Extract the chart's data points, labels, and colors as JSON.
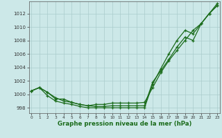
{
  "x": [
    0,
    1,
    2,
    3,
    4,
    5,
    6,
    7,
    8,
    9,
    10,
    11,
    12,
    13,
    14,
    15,
    16,
    17,
    18,
    19,
    20,
    21,
    22,
    23
  ],
  "curve1": [
    1000.5,
    1001.0,
    1000.3,
    999.5,
    999.0,
    998.8,
    998.5,
    998.3,
    998.5,
    998.5,
    998.7,
    998.7,
    998.7,
    998.7,
    998.8,
    1001.0,
    1003.2,
    1005.0,
    1006.5,
    1008.0,
    1009.5,
    1010.5,
    1012.0,
    1013.2
  ],
  "curve2": [
    1000.5,
    1001.0,
    1000.3,
    999.3,
    999.3,
    998.8,
    998.5,
    998.3,
    998.2,
    998.2,
    998.3,
    998.3,
    998.3,
    998.3,
    998.3,
    1001.8,
    1003.5,
    1005.2,
    1007.0,
    1008.5,
    1008.0,
    1010.5,
    1012.0,
    1013.2
  ],
  "curve3": [
    1000.5,
    1001.0,
    999.8,
    999.0,
    998.7,
    998.5,
    998.2,
    998.0,
    998.0,
    998.0,
    998.0,
    998.0,
    998.0,
    998.0,
    998.0,
    1001.5,
    1003.8,
    1006.0,
    1008.0,
    1009.5,
    1009.0,
    1010.5,
    1012.0,
    1013.5
  ],
  "bg_color": "#cce8e8",
  "line_color": "#1a6b1a",
  "grid_color": "#aacccc",
  "ylabel_ticks": [
    998,
    1000,
    1002,
    1004,
    1006,
    1008,
    1010,
    1012
  ],
  "ylim": [
    997.2,
    1013.8
  ],
  "xlim": [
    -0.3,
    23.3
  ],
  "xlabel": "Graphe pression niveau de la mer (hPa)"
}
